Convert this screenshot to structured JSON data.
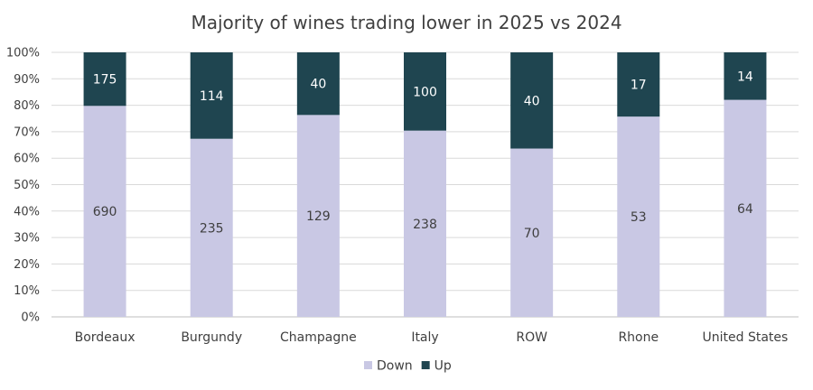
{
  "chart_data": {
    "type": "bar",
    "stacked": "percent",
    "title": "Majority of wines trading lower in 2025 vs 2024",
    "categories": [
      "Bordeaux",
      "Burgundy",
      "Champagne",
      "Italy",
      "ROW",
      "Rhone",
      "United States"
    ],
    "series": [
      {
        "name": "Down",
        "values": [
          690,
          235,
          129,
          238,
          70,
          53,
          64
        ],
        "color": "#c9c8e4",
        "label_color": "#3f3f3f"
      },
      {
        "name": "Up",
        "values": [
          175,
          114,
          40,
          100,
          40,
          17,
          14
        ],
        "color": "#1f4550",
        "label_color": "#ffffff"
      }
    ],
    "yticks": [
      "0%",
      "10%",
      "20%",
      "30%",
      "40%",
      "50%",
      "60%",
      "70%",
      "80%",
      "90%",
      "100%"
    ],
    "ylim": [
      0,
      100
    ],
    "grid": true,
    "legend": "bottom-center"
  }
}
